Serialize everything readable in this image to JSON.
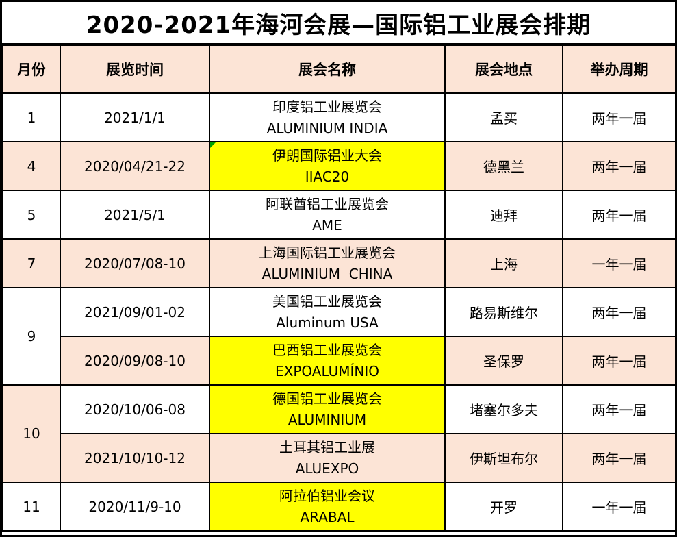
{
  "title": "2020-2021年海河会展—国际铝工业展会排期",
  "columns": {
    "month": "月份",
    "date": "展览时间",
    "name": "展会名称",
    "location": "展会地点",
    "cycle": "举办周期"
  },
  "colors": {
    "border": "#000000",
    "text": "#000000",
    "header_bg": "#fce4d6",
    "alt_row_bg": "#fce4d6",
    "highlight_bg": "#ffff00",
    "flag_triangle": "#00a000",
    "page_bg": "#ffffff"
  },
  "icons": {
    "flag_triangle": "excel-comment-flag"
  },
  "rows": [
    {
      "month": "1",
      "date": "2021/1/1",
      "name_cn": "印度铝工业展览会",
      "name_en": "ALUMINIUM INDIA",
      "location": "孟买",
      "cycle": "两年一届"
    },
    {
      "month": "4",
      "date": "2020/04/21-22",
      "name_cn": "伊朗国际铝业大会",
      "name_en": "IIAC20",
      "location": "德黑兰",
      "cycle": "两年一届"
    },
    {
      "month": "5",
      "date": "2021/5/1",
      "name_cn": "阿联酋铝工业展览会",
      "name_en": "AME",
      "location": "迪拜",
      "cycle": "两年一届"
    },
    {
      "month": "7",
      "date": "2020/07/08-10",
      "name_cn": "上海国际铝工业展览会",
      "name_en": "ALUMINIUM  CHINA",
      "location": "上海",
      "cycle": "一年一届"
    },
    {
      "month": "9",
      "date": "2021/09/01-02",
      "name_cn": "美国铝工业展览会",
      "name_en": "Aluminum USA",
      "location": "路易斯维尔",
      "cycle": "两年一届"
    },
    {
      "month": "",
      "date": "2020/09/08-10",
      "name_cn": "巴西铝工业展览会",
      "name_en": "EXPOALUMÍNIO",
      "location": "圣保罗",
      "cycle": "两年一届"
    },
    {
      "month": "10",
      "date": "2020/10/06-08",
      "name_cn": "德国铝工业展览会",
      "name_en": "ALUMINIUM",
      "location": "堵塞尔多夫",
      "cycle": "两年一届"
    },
    {
      "month": "",
      "date": "2021/10/10-12",
      "name_cn": "土耳其铝工业展",
      "name_en": "ALUEXPO",
      "location": "伊斯坦布尔",
      "cycle": "两年一届"
    },
    {
      "month": "11",
      "date": "2020/11/9-10",
      "name_cn": "阿拉伯铝业会议",
      "name_en": "ARABAL",
      "location": "开罗",
      "cycle": "一年一届"
    }
  ]
}
